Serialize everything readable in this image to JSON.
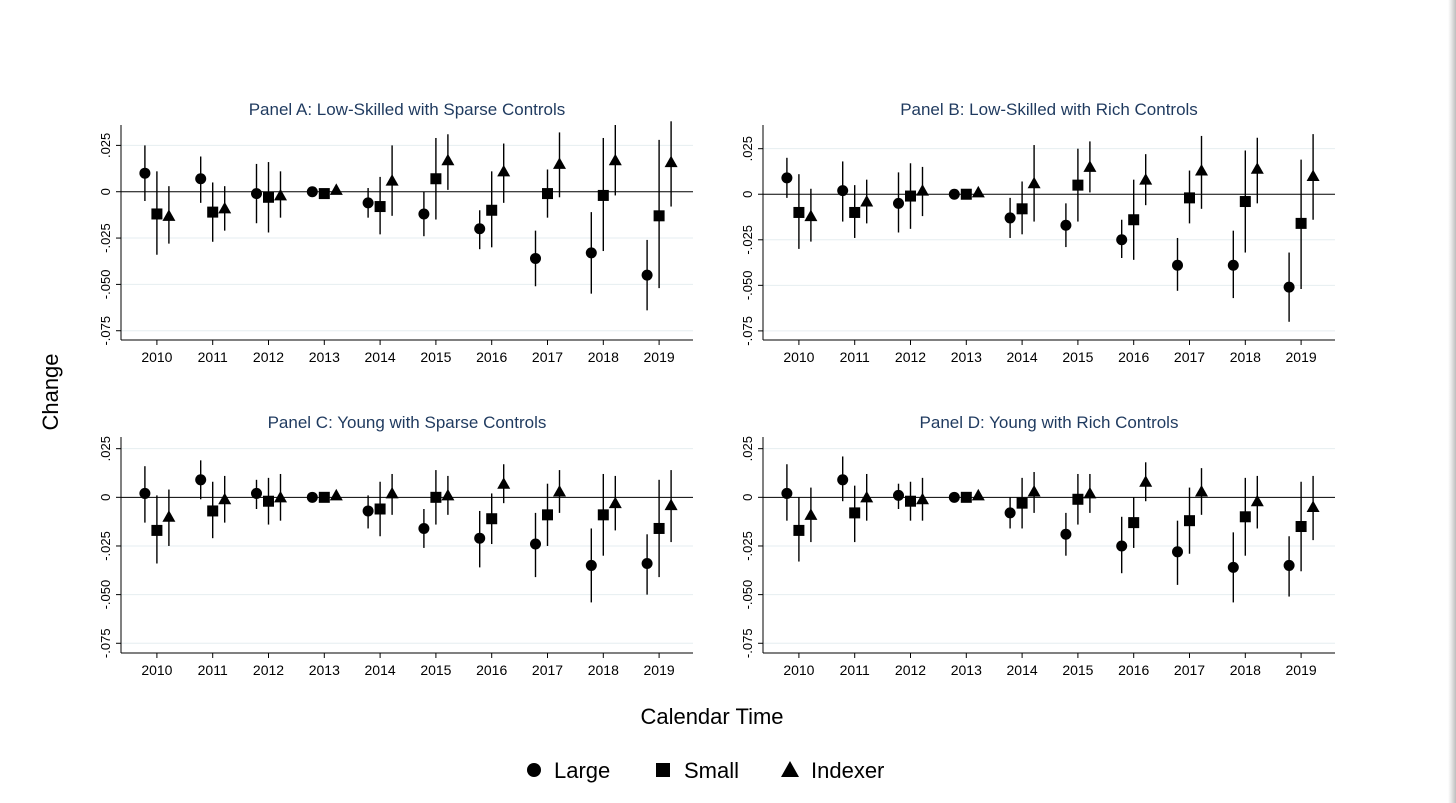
{
  "figure": {
    "ylabel": "Change",
    "xlabel": "Calendar Time"
  },
  "legend": [
    {
      "label": "Large",
      "marker": "circle"
    },
    {
      "label": "Small",
      "marker": "square"
    },
    {
      "label": "Indexer",
      "marker": "triangle"
    }
  ],
  "colors": {
    "title": "#1f3a5f",
    "marker": "#000000",
    "grid": "#e6eef0"
  },
  "chart_data": [
    {
      "type": "scatter",
      "title": "Panel A: Low-Skilled with Sparse Controls",
      "x": [
        "2010",
        "2011",
        "2012",
        "2013",
        "2014",
        "2015",
        "2016",
        "2017",
        "2018",
        "2019"
      ],
      "y_ticks": [
        ".025",
        "0",
        "-.025",
        "-.050",
        "-.075"
      ],
      "ylim": [
        -0.08,
        0.036
      ],
      "grid": true,
      "series": [
        {
          "name": "Large",
          "marker": "circle",
          "values": [
            0.01,
            0.007,
            -0.001,
            0.0,
            -0.006,
            -0.012,
            -0.02,
            -0.036,
            -0.033,
            -0.045
          ],
          "ci_low": [
            -0.005,
            -0.006,
            -0.017,
            0.0,
            -0.014,
            -0.024,
            -0.031,
            -0.051,
            -0.055,
            -0.064
          ],
          "ci_high": [
            0.025,
            0.019,
            0.015,
            0.0,
            0.002,
            0.0,
            -0.01,
            -0.021,
            -0.011,
            -0.026
          ]
        },
        {
          "name": "Small",
          "marker": "square",
          "values": [
            -0.012,
            -0.011,
            -0.003,
            -0.001,
            -0.008,
            0.007,
            -0.01,
            -0.001,
            -0.002,
            -0.013
          ],
          "ci_low": [
            -0.034,
            -0.027,
            -0.022,
            -0.001,
            -0.023,
            -0.015,
            -0.03,
            -0.014,
            -0.032,
            -0.052
          ],
          "ci_high": [
            0.011,
            0.005,
            0.016,
            -0.001,
            0.008,
            0.029,
            0.011,
            0.012,
            0.029,
            0.028
          ]
        },
        {
          "name": "Indexer",
          "marker": "triangle",
          "values": [
            -0.013,
            -0.009,
            -0.002,
            0.001,
            0.006,
            0.017,
            0.011,
            0.015,
            0.017,
            0.016
          ],
          "ci_low": [
            -0.028,
            -0.021,
            -0.014,
            0.001,
            -0.013,
            0.001,
            -0.006,
            -0.003,
            -0.002,
            -0.008
          ],
          "ci_high": [
            0.003,
            0.003,
            0.011,
            0.001,
            0.025,
            0.031,
            0.026,
            0.032,
            0.036,
            0.038
          ]
        }
      ]
    },
    {
      "type": "scatter",
      "title": "Panel B: Low-Skilled with Rich Controls",
      "x": [
        "2010",
        "2011",
        "2012",
        "2013",
        "2014",
        "2015",
        "2016",
        "2017",
        "2018",
        "2019"
      ],
      "y_ticks": [
        ".025",
        "0",
        "-.025",
        "-.050",
        "-.075"
      ],
      "ylim": [
        -0.08,
        0.038
      ],
      "grid": true,
      "series": [
        {
          "name": "Large",
          "marker": "circle",
          "values": [
            0.009,
            0.002,
            -0.005,
            0.0,
            -0.013,
            -0.017,
            -0.025,
            -0.039,
            -0.039,
            -0.051
          ],
          "ci_low": [
            -0.002,
            -0.015,
            -0.021,
            0.0,
            -0.024,
            -0.029,
            -0.035,
            -0.053,
            -0.057,
            -0.07
          ],
          "ci_high": [
            0.02,
            0.018,
            0.012,
            0.0,
            -0.002,
            -0.005,
            -0.014,
            -0.024,
            -0.02,
            -0.032
          ]
        },
        {
          "name": "Small",
          "marker": "square",
          "values": [
            -0.01,
            -0.01,
            -0.001,
            0.0,
            -0.008,
            0.005,
            -0.014,
            -0.002,
            -0.004,
            -0.016
          ],
          "ci_low": [
            -0.03,
            -0.024,
            -0.019,
            0.0,
            -0.022,
            -0.015,
            -0.036,
            -0.016,
            -0.032,
            -0.052
          ],
          "ci_high": [
            0.011,
            0.005,
            0.017,
            0.0,
            0.007,
            0.025,
            0.008,
            0.013,
            0.024,
            0.019
          ]
        },
        {
          "name": "Indexer",
          "marker": "triangle",
          "values": [
            -0.012,
            -0.004,
            0.002,
            0.001,
            0.006,
            0.015,
            0.008,
            0.013,
            0.014,
            0.01
          ],
          "ci_low": [
            -0.026,
            -0.016,
            -0.012,
            0.001,
            -0.015,
            0.001,
            -0.006,
            -0.008,
            -0.005,
            -0.014
          ],
          "ci_high": [
            0.003,
            0.008,
            0.015,
            0.001,
            0.027,
            0.029,
            0.022,
            0.032,
            0.031,
            0.033
          ]
        }
      ]
    },
    {
      "type": "scatter",
      "title": "Panel C: Young with Sparse Controls",
      "x": [
        "2010",
        "2011",
        "2012",
        "2013",
        "2014",
        "2015",
        "2016",
        "2017",
        "2018",
        "2019"
      ],
      "y_ticks": [
        ".025",
        "0",
        "-.025",
        "-.050",
        "-.075"
      ],
      "ylim": [
        -0.08,
        0.031
      ],
      "grid": true,
      "series": [
        {
          "name": "Large",
          "marker": "circle",
          "values": [
            0.002,
            0.009,
            0.002,
            0.0,
            -0.007,
            -0.016,
            -0.021,
            -0.024,
            -0.035,
            -0.034
          ],
          "ci_low": [
            -0.013,
            -0.001,
            -0.006,
            0.0,
            -0.016,
            -0.026,
            -0.036,
            -0.041,
            -0.054,
            -0.05
          ],
          "ci_high": [
            0.016,
            0.019,
            0.009,
            0.0,
            0.001,
            -0.006,
            -0.007,
            -0.008,
            -0.016,
            -0.019
          ]
        },
        {
          "name": "Small",
          "marker": "square",
          "values": [
            -0.017,
            -0.007,
            -0.002,
            0.0,
            -0.006,
            0.0,
            -0.011,
            -0.009,
            -0.009,
            -0.016
          ],
          "ci_low": [
            -0.034,
            -0.021,
            -0.014,
            0.0,
            -0.02,
            -0.014,
            -0.024,
            -0.025,
            -0.03,
            -0.041
          ],
          "ci_high": [
            0.001,
            0.008,
            0.01,
            0.0,
            0.008,
            0.014,
            0.002,
            0.007,
            0.012,
            0.009
          ]
        },
        {
          "name": "Indexer",
          "marker": "triangle",
          "values": [
            -0.01,
            -0.001,
            0.0,
            0.001,
            0.002,
            0.001,
            0.007,
            0.003,
            -0.003,
            -0.004
          ],
          "ci_low": [
            -0.025,
            -0.013,
            -0.012,
            0.001,
            -0.009,
            -0.009,
            -0.003,
            -0.008,
            -0.017,
            -0.023
          ],
          "ci_high": [
            0.004,
            0.011,
            0.012,
            0.001,
            0.012,
            0.011,
            0.017,
            0.014,
            0.011,
            0.014
          ]
        }
      ]
    },
    {
      "type": "scatter",
      "title": "Panel D: Young with Rich Controls",
      "x": [
        "2010",
        "2011",
        "2012",
        "2013",
        "2014",
        "2015",
        "2016",
        "2017",
        "2018",
        "2019"
      ],
      "y_ticks": [
        ".025",
        "0",
        "-.025",
        "-.050",
        "-.075"
      ],
      "ylim": [
        -0.08,
        0.031
      ],
      "grid": true,
      "series": [
        {
          "name": "Large",
          "marker": "circle",
          "values": [
            0.002,
            0.009,
            0.001,
            0.0,
            -0.008,
            -0.019,
            -0.025,
            -0.028,
            -0.036,
            -0.035
          ],
          "ci_low": [
            -0.012,
            -0.002,
            -0.006,
            0.0,
            -0.016,
            -0.03,
            -0.039,
            -0.045,
            -0.054,
            -0.051
          ],
          "ci_high": [
            0.017,
            0.021,
            0.007,
            0.0,
            0.0,
            -0.008,
            -0.01,
            -0.012,
            -0.018,
            -0.02
          ]
        },
        {
          "name": "Small",
          "marker": "square",
          "values": [
            -0.017,
            -0.008,
            -0.002,
            0.0,
            -0.003,
            -0.001,
            -0.013,
            -0.012,
            -0.01,
            -0.015
          ],
          "ci_low": [
            -0.033,
            -0.023,
            -0.012,
            0.0,
            -0.016,
            -0.014,
            -0.026,
            -0.029,
            -0.03,
            -0.038
          ],
          "ci_high": [
            0.0,
            0.006,
            0.008,
            0.0,
            0.01,
            0.012,
            0.0,
            0.005,
            0.01,
            0.008
          ]
        },
        {
          "name": "Indexer",
          "marker": "triangle",
          "values": [
            -0.009,
            0.0,
            -0.001,
            0.001,
            0.003,
            0.002,
            0.008,
            0.003,
            -0.002,
            -0.005
          ],
          "ci_low": [
            -0.023,
            -0.012,
            -0.012,
            0.001,
            -0.008,
            -0.008,
            -0.002,
            -0.009,
            -0.016,
            -0.022
          ],
          "ci_high": [
            0.005,
            0.012,
            0.01,
            0.001,
            0.013,
            0.012,
            0.018,
            0.015,
            0.011,
            0.011
          ]
        }
      ]
    }
  ]
}
